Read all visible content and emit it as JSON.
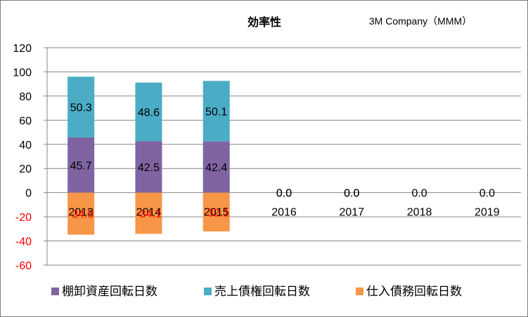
{
  "chart_data": {
    "type": "bar",
    "stacked": true,
    "title": "効率性",
    "subtitle": "3M Company（MMM）",
    "categories": [
      "2013",
      "2014",
      "2015",
      "2016",
      "2017",
      "2018",
      "2019"
    ],
    "series": [
      {
        "name": "棚卸資産回転日数",
        "color": "#8064a2",
        "values": [
          45.7,
          42.5,
          42.4,
          0.0,
          0.0,
          0.0,
          0.0
        ],
        "labels": [
          "45.7",
          "42.5",
          "42.4",
          "",
          "",
          "",
          ""
        ]
      },
      {
        "name": "売上債権回転日数",
        "color": "#4bacc6",
        "values": [
          50.3,
          48.6,
          50.1,
          0.0,
          0.0,
          0.0,
          0.0
        ],
        "labels": [
          "50.3",
          "48.6",
          "50.1",
          "0.0",
          "0.0",
          "0.0",
          "0.0"
        ]
      },
      {
        "name": "仕入債務回転日数",
        "color": "#f79646",
        "values": [
          -34.8,
          -34.1,
          -32.1,
          0.0,
          0.0,
          0.0,
          0.0
        ],
        "labels": [
          "-34.8",
          "-34.1",
          "-32.1",
          "0.0",
          "0.0",
          "",
          ""
        ]
      }
    ],
    "yticks": [
      "120",
      "100",
      "80",
      "60",
      "40",
      "20",
      "0",
      "-20",
      "-40",
      "-60"
    ],
    "ylim": [
      -60,
      120
    ],
    "ytick_step": 20,
    "negative_color": "#ff0000",
    "legend_position": "bottom"
  }
}
